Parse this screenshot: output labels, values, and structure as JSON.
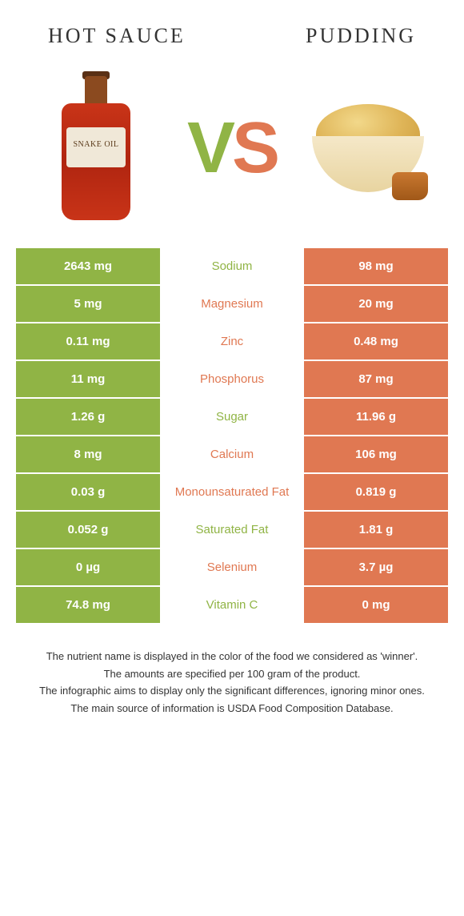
{
  "header": {
    "left_title": "Hot sauce",
    "right_title": "Pudding"
  },
  "vs": {
    "v": "V",
    "s": "S"
  },
  "bottle_label": "SNAKE OIL",
  "colors": {
    "left": "#90b445",
    "right": "#e07852",
    "bg": "#ffffff",
    "text_dark": "#333333"
  },
  "rows": [
    {
      "left": "2643 mg",
      "label": "Sodium",
      "label_color": "#90b445",
      "right": "98 mg"
    },
    {
      "left": "5 mg",
      "label": "Magnesium",
      "label_color": "#e07852",
      "right": "20 mg"
    },
    {
      "left": "0.11 mg",
      "label": "Zinc",
      "label_color": "#e07852",
      "right": "0.48 mg"
    },
    {
      "left": "11 mg",
      "label": "Phosphorus",
      "label_color": "#e07852",
      "right": "87 mg"
    },
    {
      "left": "1.26 g",
      "label": "Sugar",
      "label_color": "#90b445",
      "right": "11.96 g"
    },
    {
      "left": "8 mg",
      "label": "Calcium",
      "label_color": "#e07852",
      "right": "106 mg"
    },
    {
      "left": "0.03 g",
      "label": "Monounsaturated Fat",
      "label_color": "#e07852",
      "right": "0.819 g"
    },
    {
      "left": "0.052 g",
      "label": "Saturated Fat",
      "label_color": "#90b445",
      "right": "1.81 g"
    },
    {
      "left": "0 µg",
      "label": "Selenium",
      "label_color": "#e07852",
      "right": "3.7 µg"
    },
    {
      "left": "74.8 mg",
      "label": "Vitamin C",
      "label_color": "#90b445",
      "right": "0 mg"
    }
  ],
  "footer": {
    "line1": "The nutrient name is displayed in the color of the food we considered as 'winner'.",
    "line2": "The amounts are specified per 100 gram of the product.",
    "line3": "The infographic aims to display only the significant differences, ignoring minor ones.",
    "line4": "The main source of information is USDA Food Composition Database."
  }
}
